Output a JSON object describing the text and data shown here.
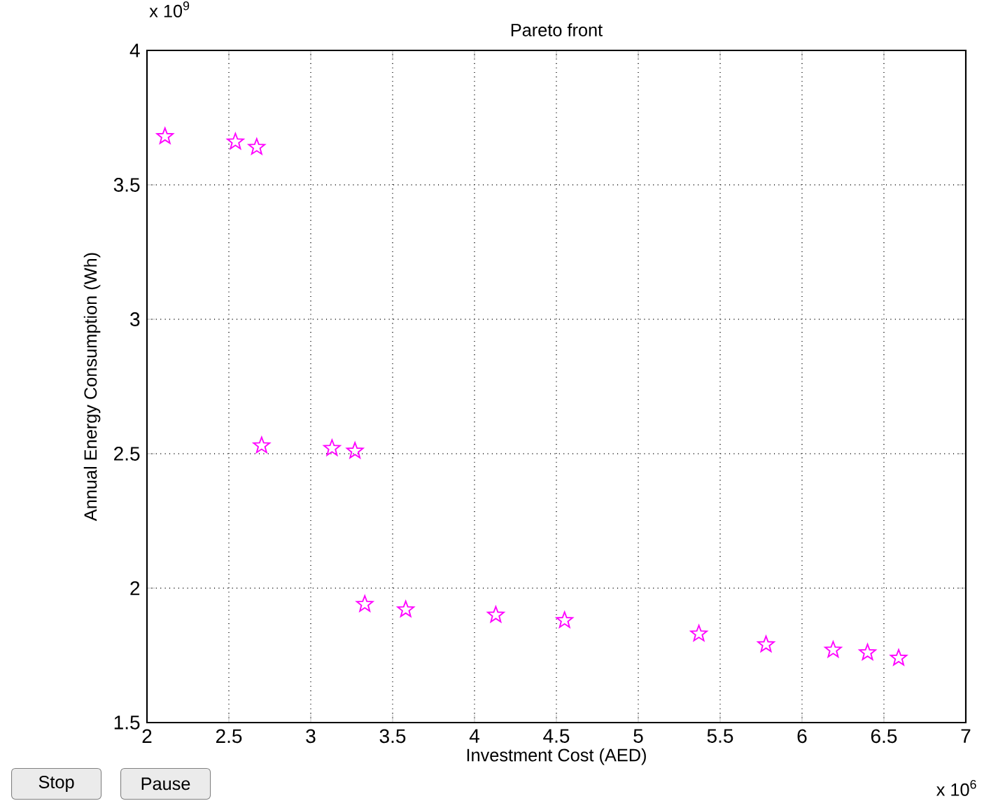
{
  "chart_data": {
    "type": "scatter",
    "title": "Pareto front",
    "xlabel": "Investment Cost (AED)",
    "ylabel": "Annual Energy Consumption (Wh)",
    "x": [
      2.11,
      2.54,
      2.67,
      2.7,
      3.13,
      3.27,
      3.33,
      3.58,
      4.13,
      4.55,
      5.37,
      5.78,
      6.19,
      6.4,
      6.59
    ],
    "values": [
      3.68,
      3.66,
      3.64,
      2.53,
      2.52,
      2.51,
      1.94,
      1.92,
      1.9,
      1.88,
      1.83,
      1.79,
      1.77,
      1.76,
      1.74
    ],
    "color": "#ff00ff",
    "marker": "star",
    "grid": true,
    "xlim": [
      2,
      7
    ],
    "ylim": [
      1.5,
      4
    ],
    "xticks": [
      2,
      2.5,
      3,
      3.5,
      4,
      4.5,
      5,
      5.5,
      6,
      6.5,
      7
    ],
    "yticks": [
      1.5,
      2,
      2.5,
      3,
      3.5,
      4
    ],
    "annotations": [
      "x 10$^{9}$",
      "x 10$^{6}$",
      "Stop",
      "Pause"
    ]
  }
}
